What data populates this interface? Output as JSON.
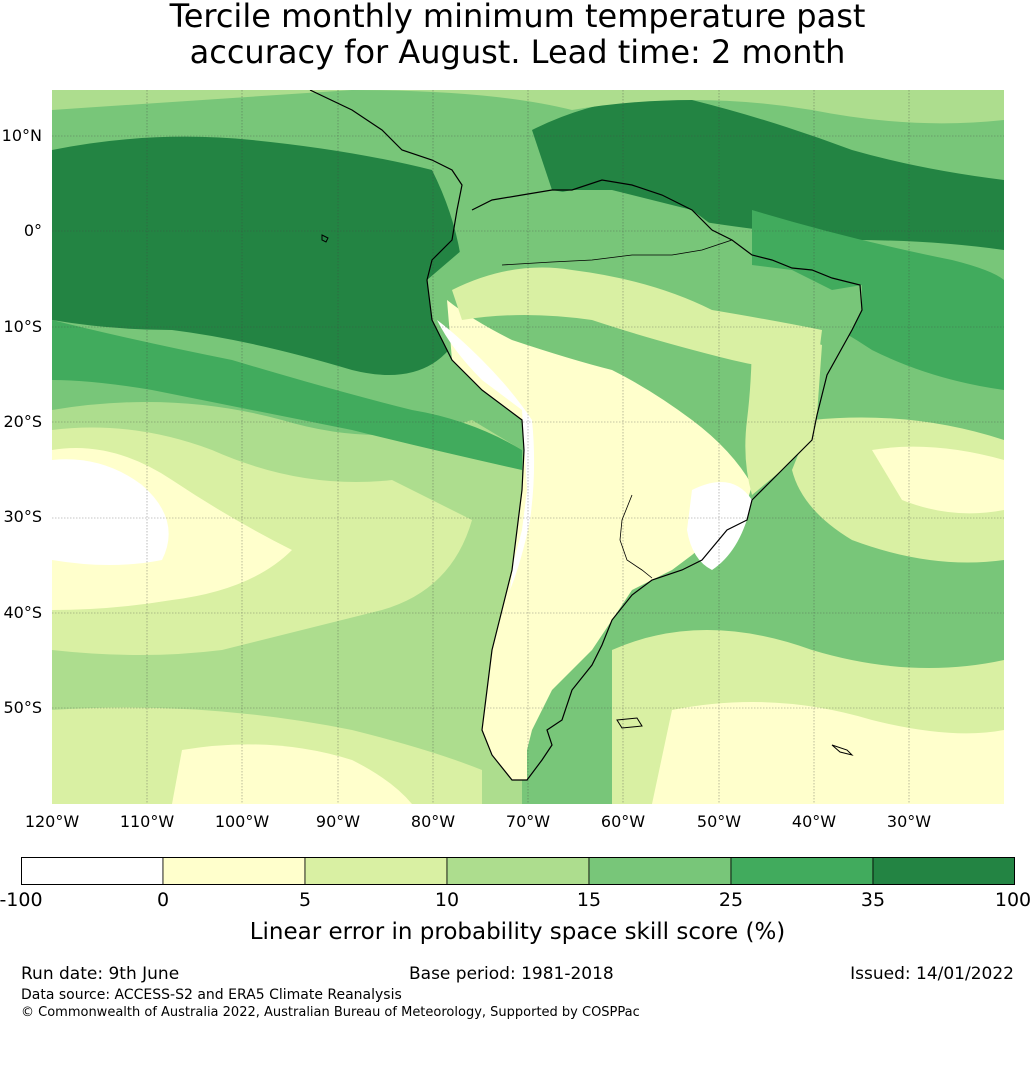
{
  "title": {
    "line1": "Tercile monthly minimum temperature past",
    "line2": "accuracy for August. Lead time: 2 month"
  },
  "map": {
    "lat_labels": [
      "10°N",
      "0°",
      "10°S",
      "20°S",
      "30°S",
      "40°S",
      "50°S"
    ],
    "lon_labels": [
      "120°W",
      "110°W",
      "100°W",
      "90°W",
      "80°W",
      "70°W",
      "60°W",
      "50°W",
      "40°W",
      "30°W"
    ]
  },
  "colorbar": {
    "label": "Linear error in probability space skill score (%)",
    "ticks": [
      "-100",
      "0",
      "5",
      "10",
      "15",
      "25",
      "35",
      "100"
    ],
    "colors": [
      "#ffffff",
      "#ffffcc",
      "#d9f0a3",
      "#addd8e",
      "#78c679",
      "#41ab5d",
      "#238443"
    ]
  },
  "footer": {
    "run_date": "Run date: 9th June",
    "base_period": "Base period: 1981-2018",
    "issued": "Issued: 14/01/2022",
    "data_source": "Data source: ACCESS-S2 and ERA5 Climate Reanalysis",
    "copyright": "© Commonwealth of Australia 2022, Australian Bureau of Meteorology, Supported by COSPPac"
  }
}
